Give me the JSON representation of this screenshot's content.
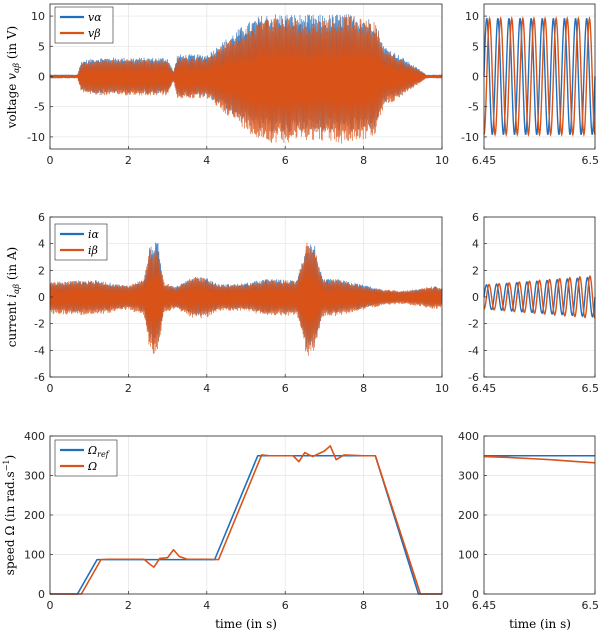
{
  "colors": {
    "blue": "#1f6fbf",
    "orange": "#d95319",
    "grid": "#e3e3e3",
    "axis": "#262626"
  },
  "chart_data": [
    {
      "id": "voltage-main",
      "type": "line",
      "ylabel": "voltage v_αβ (in V)",
      "xlim": [
        0,
        10
      ],
      "ylim": [
        -12,
        12
      ],
      "xticks": [
        "0",
        "2",
        "4",
        "6",
        "8",
        "10"
      ],
      "yticks": [
        "-10",
        "-5",
        "0",
        "5",
        "10"
      ],
      "xtick_values": [
        0,
        2,
        4,
        6,
        8,
        10
      ],
      "ytick_values": [
        -10,
        -5,
        0,
        5,
        10
      ],
      "grid": true,
      "legend": {
        "placement": "top-left",
        "entries": [
          "vα",
          "vβ"
        ]
      },
      "series": [
        {
          "name": "vα",
          "kind": "envelope",
          "color": "blue",
          "x": [
            0,
            0.7,
            0.8,
            1.2,
            2.0,
            3.0,
            3.15,
            3.25,
            4.0,
            4.2,
            4.8,
            5.3,
            5.6,
            6.0,
            6.5,
            7.0,
            7.5,
            8.0,
            8.3,
            8.5,
            9.0,
            9.5,
            9.6,
            10
          ],
          "amplitude": [
            0.3,
            0.3,
            2.5,
            3,
            3,
            3,
            0.8,
            3.5,
            3.5,
            4.5,
            7.5,
            9.5,
            10,
            10,
            9.8,
            9.8,
            10,
            9.5,
            9,
            5,
            3,
            0.8,
            0.3,
            0.3
          ]
        },
        {
          "name": "vβ",
          "kind": "envelope",
          "color": "orange",
          "x": [
            0,
            0.7,
            0.8,
            1.2,
            2.0,
            3.0,
            3.15,
            3.25,
            4.0,
            4.2,
            4.8,
            5.3,
            5.6,
            6.0,
            6.5,
            7.0,
            7.5,
            8.0,
            8.3,
            8.5,
            9.0,
            9.5,
            9.6,
            10
          ],
          "amplitude": [
            0.3,
            0.3,
            2.5,
            3,
            3,
            3,
            0.8,
            3.5,
            3.5,
            4.5,
            7.5,
            10,
            10.5,
            10.5,
            10,
            10.2,
            10.8,
            10,
            9.5,
            5,
            3,
            0.8,
            0.3,
            0.3
          ]
        }
      ]
    },
    {
      "id": "voltage-zoom",
      "type": "line",
      "xlim": [
        6.45,
        6.5
      ],
      "ylim": [
        -12,
        12
      ],
      "xticks": [
        "6.45",
        "6.5"
      ],
      "xtick_values": [
        6.45,
        6.5
      ],
      "yticks": [
        "-10",
        "-5",
        "0",
        "5",
        "10"
      ],
      "ytick_values": [
        -10,
        -5,
        0,
        5,
        10
      ],
      "grid": true,
      "series": [
        {
          "name": "vα",
          "kind": "sine",
          "color": "blue",
          "amplitude": 9.6,
          "frequency": 200,
          "phase": 0
        },
        {
          "name": "vβ",
          "kind": "sine",
          "color": "orange",
          "amplitude": 9.6,
          "frequency": 200,
          "phase": -1.5708
        }
      ]
    },
    {
      "id": "current-main",
      "type": "line",
      "ylabel": "current i_αβ (in A)",
      "xlim": [
        0,
        10
      ],
      "ylim": [
        -6,
        6
      ],
      "xticks": [
        "0",
        "2",
        "4",
        "6",
        "8",
        "10"
      ],
      "xtick_values": [
        0,
        2,
        4,
        6,
        8,
        10
      ],
      "yticks": [
        "-6",
        "-4",
        "-2",
        "0",
        "2",
        "4",
        "6"
      ],
      "ytick_values": [
        -6,
        -4,
        -2,
        0,
        2,
        4,
        6
      ],
      "grid": true,
      "legend": {
        "placement": "top-left",
        "entries": [
          "iα",
          "iβ"
        ]
      },
      "series": [
        {
          "name": "iα",
          "kind": "envelope",
          "color": "blue",
          "x": [
            0,
            0.8,
            1.2,
            2.0,
            2.4,
            2.55,
            2.75,
            2.9,
            3.2,
            3.3,
            3.7,
            4.0,
            4.3,
            5.0,
            5.5,
            6.3,
            6.55,
            6.75,
            6.95,
            7.3,
            8.0,
            8.5,
            9.0,
            9.5,
            9.8,
            10
          ],
          "amplitude": [
            1.0,
            1.2,
            1.2,
            0.8,
            1.3,
            3.8,
            4.0,
            1.0,
            0.8,
            0.9,
            1.5,
            1.4,
            0.9,
            1.0,
            1.3,
            1.2,
            4.0,
            3.8,
            1.3,
            1.3,
            0.9,
            0.5,
            0.4,
            0.6,
            0.8,
            0.6
          ]
        },
        {
          "name": "iβ",
          "kind": "envelope",
          "color": "orange",
          "x": [
            0,
            0.8,
            1.2,
            2.0,
            2.4,
            2.55,
            2.75,
            2.9,
            3.2,
            3.3,
            3.7,
            4.0,
            4.3,
            5.0,
            5.5,
            6.3,
            6.55,
            6.75,
            6.95,
            7.3,
            8.0,
            8.5,
            9.0,
            9.5,
            9.8,
            10
          ],
          "amplitude": [
            1.2,
            1.3,
            1.3,
            0.9,
            1.4,
            4.0,
            4.2,
            1.2,
            0.8,
            1.0,
            1.6,
            1.5,
            1.0,
            1.0,
            1.4,
            1.3,
            4.3,
            4.0,
            1.4,
            1.4,
            0.9,
            0.6,
            0.5,
            0.7,
            0.9,
            0.7
          ]
        }
      ]
    },
    {
      "id": "current-zoom",
      "type": "line",
      "xlim": [
        6.45,
        6.5
      ],
      "ylim": [
        -6,
        6
      ],
      "xticks": [
        "6.45",
        "6.5"
      ],
      "xtick_values": [
        6.45,
        6.5
      ],
      "yticks": [
        "-6",
        "-4",
        "-2",
        "0",
        "2",
        "4",
        "6"
      ],
      "ytick_values": [
        -6,
        -4,
        -2,
        0,
        2,
        4,
        6
      ],
      "grid": true,
      "series": [
        {
          "name": "iα",
          "kind": "sine",
          "color": "blue",
          "amplitude": 0.9,
          "amplitude_end": 1.5,
          "frequency": 220,
          "phase": 0
        },
        {
          "name": "iβ",
          "kind": "sine",
          "color": "orange",
          "amplitude": 0.9,
          "amplitude_end": 1.6,
          "frequency": 220,
          "phase": -1.5708
        }
      ]
    },
    {
      "id": "speed-main",
      "type": "line",
      "ylabel": "speed Ω (in rad.s⁻¹)",
      "xlabel": "time (in s)",
      "xlim": [
        0,
        10
      ],
      "ylim": [
        0,
        400
      ],
      "xticks": [
        "0",
        "2",
        "4",
        "6",
        "8",
        "10"
      ],
      "xtick_values": [
        0,
        2,
        4,
        6,
        8,
        10
      ],
      "yticks": [
        "0",
        "100",
        "200",
        "300",
        "400"
      ],
      "ytick_values": [
        0,
        100,
        200,
        300,
        400
      ],
      "grid": true,
      "legend": {
        "placement": "top-left",
        "entries": [
          "Ωref",
          "Ω"
        ]
      },
      "series": [
        {
          "name": "Ωref",
          "color": "blue",
          "x": [
            0,
            0.7,
            1.2,
            4.2,
            5.3,
            8.3,
            9.4,
            10
          ],
          "y": [
            0,
            0,
            87,
            87,
            350,
            350,
            0,
            0
          ]
        },
        {
          "name": "Ω",
          "color": "orange",
          "x": [
            0,
            0.8,
            1.3,
            1.5,
            2.0,
            2.4,
            2.55,
            2.65,
            2.8,
            3.0,
            3.15,
            3.3,
            3.5,
            4.0,
            4.3,
            5.4,
            5.6,
            6.0,
            6.2,
            6.35,
            6.5,
            6.7,
            7.0,
            7.15,
            7.3,
            7.5,
            8.0,
            8.3,
            9.45,
            10
          ],
          "y": [
            0,
            0,
            87,
            88,
            88,
            88,
            75,
            68,
            90,
            92,
            112,
            95,
            88,
            88,
            87,
            352,
            350,
            350,
            350,
            335,
            358,
            348,
            362,
            375,
            340,
            352,
            350,
            350,
            0,
            0
          ]
        }
      ]
    },
    {
      "id": "speed-zoom",
      "type": "line",
      "xlabel": "time (in s)",
      "xlim": [
        6.45,
        6.5
      ],
      "ylim": [
        0,
        400
      ],
      "xticks": [
        "6.45",
        "6.5"
      ],
      "xtick_values": [
        6.45,
        6.5
      ],
      "yticks": [
        "0",
        "100",
        "200",
        "300",
        "400"
      ],
      "ytick_values": [
        0,
        100,
        200,
        300,
        400
      ],
      "grid": true,
      "series": [
        {
          "name": "Ωref",
          "color": "blue",
          "x": [
            6.45,
            6.5
          ],
          "y": [
            350,
            350
          ]
        },
        {
          "name": "Ω",
          "color": "orange",
          "x": [
            6.45,
            6.46,
            6.47,
            6.48,
            6.49,
            6.5
          ],
          "y": [
            348,
            346,
            343,
            340,
            336,
            332
          ]
        }
      ]
    }
  ]
}
